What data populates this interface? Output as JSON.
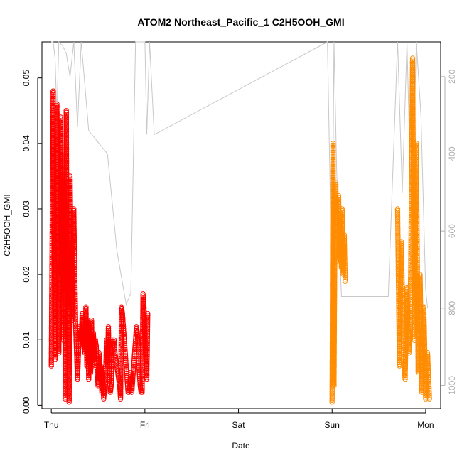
{
  "chart_data": {
    "type": "scatter",
    "title": "ATOM2 Northeast_Pacific_1 C2H5OOH_GMI",
    "xlabel": "Date",
    "ylabel": "C2H5OOH_GMI",
    "x_ticks": [
      "Thu",
      "Fri",
      "Sat",
      "Sun",
      "Mon"
    ],
    "y_ticks": [
      "0.00",
      "0.01",
      "0.02",
      "0.03",
      "0.04",
      "0.05"
    ],
    "y_right_ticks": [
      "200",
      "400",
      "600",
      "800",
      "1000"
    ],
    "ylim": [
      -0.0005,
      0.0555
    ],
    "y_right_lim": [
      1060,
      110
    ],
    "xlim": [
      -0.1,
      4.16
    ],
    "series": [
      {
        "color": "#ff0000",
        "x": [
          0.0,
          0.02,
          0.04,
          0.06,
          0.08,
          0.1,
          0.11,
          0.12,
          0.13,
          0.14,
          0.15,
          0.16,
          0.17,
          0.18,
          0.19,
          0.2,
          0.22,
          0.24,
          0.26,
          0.28,
          0.3,
          0.31,
          0.32,
          0.33,
          0.34,
          0.35,
          0.36,
          0.37,
          0.38,
          0.39,
          0.4,
          0.41,
          0.42,
          0.43,
          0.44,
          0.45,
          0.46,
          0.47,
          0.48,
          0.49,
          0.5,
          0.51,
          0.52,
          0.53,
          0.54,
          0.55,
          0.56,
          0.57,
          0.58,
          0.59,
          0.6,
          0.61,
          0.62,
          0.63,
          0.64,
          0.65,
          0.66,
          0.67,
          0.68,
          0.69,
          0.7,
          0.71,
          0.72,
          0.73,
          0.74,
          0.75,
          0.76,
          0.77,
          0.78,
          0.79,
          0.8,
          0.81,
          0.82,
          0.83,
          0.84,
          0.85,
          0.86,
          0.87,
          0.88,
          0.89,
          0.9,
          0.91,
          0.92,
          0.93,
          0.94,
          0.95,
          0.96,
          0.97,
          0.98,
          0.99,
          1.0,
          1.01,
          1.02,
          1.03
        ],
        "y": [
          0.006,
          0.048,
          0.007,
          0.046,
          0.008,
          0.044,
          0.02,
          0.035,
          0.01,
          0.03,
          0.001,
          0.045,
          0.015,
          0.025,
          0.0005,
          0.035,
          0.013,
          0.03,
          0.012,
          0.004,
          0.012,
          0.011,
          0.01,
          0.014,
          0.009,
          0.012,
          0.008,
          0.015,
          0.006,
          0.013,
          0.004,
          0.012,
          0.005,
          0.013,
          0.006,
          0.011,
          0.007,
          0.01,
          0.009,
          0.005,
          0.003,
          0.008,
          0.004,
          0.006,
          0.002,
          0.005,
          0.001,
          0.003,
          0.004,
          0.01,
          0.006,
          0.012,
          0.004,
          0.002,
          0.003,
          0.01,
          0.009,
          0.01,
          0.008,
          0.007,
          0.006,
          0.005,
          0.004,
          0.003,
          0.001,
          0.015,
          0.014,
          0.012,
          0.01,
          0.008,
          0.006,
          0.004,
          0.002,
          0.002,
          0.003,
          0.005,
          0.002,
          0.004,
          0.006,
          0.008,
          0.01,
          0.012,
          0.011,
          0.008,
          0.005,
          0.003,
          0.002,
          0.002,
          0.017,
          0.015,
          0.01,
          0.007,
          0.004,
          0.014
        ]
      },
      {
        "color": "#ff8c00",
        "x": [
          3.0,
          3.01,
          3.02,
          3.03,
          3.04,
          3.05,
          3.06,
          3.07,
          3.08,
          3.09,
          3.1,
          3.11,
          3.12,
          3.13,
          3.14,
          3.7,
          3.72,
          3.74,
          3.76,
          3.78,
          3.8,
          3.82,
          3.84,
          3.86,
          3.88,
          3.9,
          3.92,
          3.94,
          3.96,
          3.98,
          4.0,
          4.02,
          4.04
        ],
        "y": [
          0.0005,
          0.04,
          0.003,
          0.025,
          0.034,
          0.022,
          0.028,
          0.032,
          0.023,
          0.029,
          0.021,
          0.03,
          0.02,
          0.026,
          0.019,
          0.03,
          0.006,
          0.025,
          0.01,
          0.004,
          0.018,
          0.008,
          0.02,
          0.053,
          0.01,
          0.04,
          0.005,
          0.02,
          0.002,
          0.015,
          0.001,
          0.008,
          0.001
        ]
      }
    ],
    "background_series": {
      "color": "#c8c8c8",
      "x": [
        0.0,
        0.02,
        0.04,
        0.06,
        0.08,
        0.12,
        0.16,
        0.2,
        0.24,
        0.28,
        0.32,
        0.4,
        0.6,
        0.7,
        0.75,
        0.8,
        0.85,
        0.9,
        0.95,
        1.0,
        1.02,
        1.05,
        1.1,
        2.95,
        3.0,
        3.02,
        3.05,
        3.1,
        3.15,
        3.6,
        3.7,
        3.75,
        3.8,
        3.85,
        3.9,
        3.95,
        4.0,
        4.02
      ],
      "y_right": [
        110,
        110,
        150,
        300,
        110,
        120,
        140,
        200,
        110,
        330,
        110,
        340,
        400,
        650,
        720,
        790,
        760,
        110,
        110,
        110,
        350,
        110,
        350,
        110,
        770,
        110,
        450,
        770,
        770,
        770,
        110,
        500,
        110,
        600,
        110,
        300,
        750,
        800
      ]
    }
  }
}
